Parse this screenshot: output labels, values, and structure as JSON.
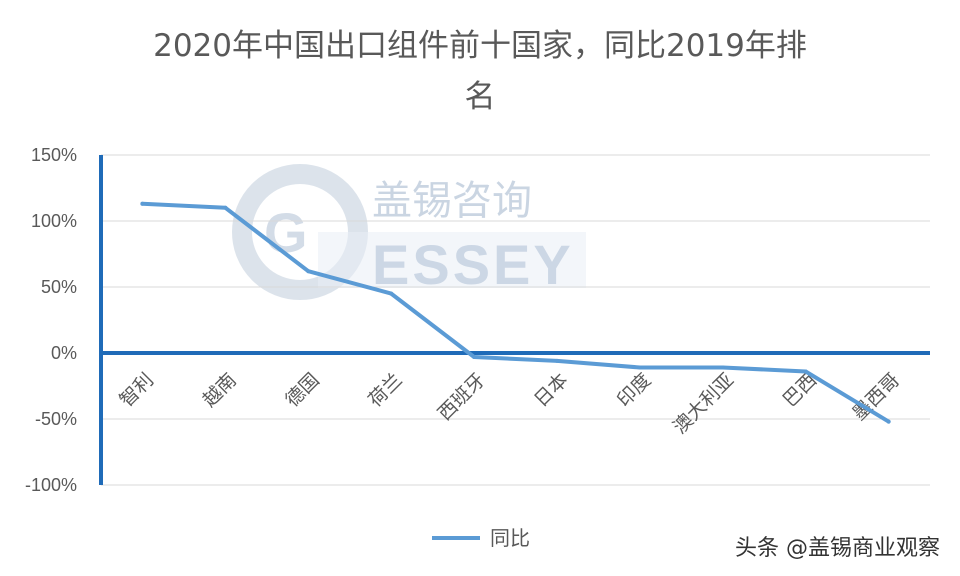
{
  "chart_data": {
    "type": "line",
    "title_line1": "2020年中国出口组件前十国家，同比2019年排",
    "title_line2": "名",
    "categories": [
      "智利",
      "越南",
      "德国",
      "荷兰",
      "西班牙",
      "日本",
      "印度",
      "澳大利亚",
      "巴西",
      "墨西哥"
    ],
    "series": [
      {
        "name": "同比",
        "values": [
          113,
          110,
          62,
          45,
          -3,
          -6,
          -11,
          -11,
          -14,
          -52
        ]
      }
    ],
    "ylim": [
      -100,
      150
    ],
    "yticks": [
      150,
      100,
      50,
      0,
      -50,
      -100
    ],
    "ytick_labels": [
      "150%",
      "100%",
      "50%",
      "0%",
      "-50%",
      "-100%"
    ],
    "grid": true,
    "legend_position": "bottom",
    "colors": {
      "series": "#5b9bd5",
      "axis": "#1f6bb8",
      "grid": "#d9d9d9"
    }
  },
  "watermark": {
    "cn": "盖锡咨询",
    "en": "ESSEY",
    "letter": "G"
  },
  "footer": {
    "text": "头条 @盖锡商业观察"
  }
}
